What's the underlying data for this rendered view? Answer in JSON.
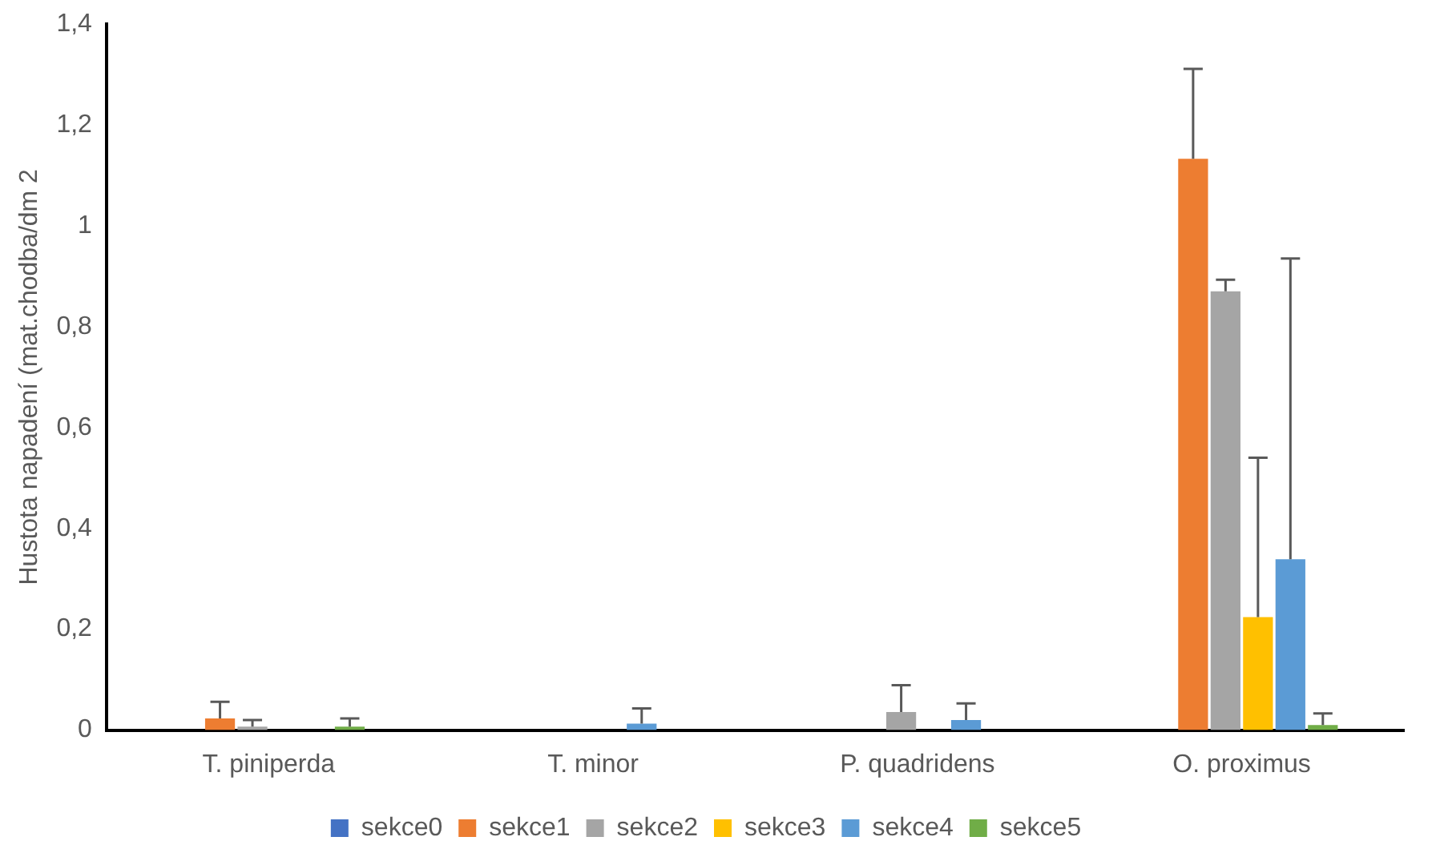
{
  "chart_data": {
    "type": "bar",
    "ylabel": "Hustota napadení (mat.chodba/dm 2",
    "categories": [
      "T. piniperda",
      "T. minor",
      "P. quadridens",
      "O. proximus"
    ],
    "series": [
      {
        "name": "sekce0",
        "color": "#4472c4",
        "values": [
          0,
          0,
          0,
          0
        ]
      },
      {
        "name": "sekce1",
        "color": "#ed7d31",
        "values": [
          0.023,
          0,
          0,
          1.133
        ],
        "errors": [
          [
            0.023,
            0.056
          ],
          null,
          null,
          [
            1.133,
            1.311
          ]
        ]
      },
      {
        "name": "sekce2",
        "color": "#a5a5a5",
        "values": [
          0.007,
          0,
          0.036,
          0.87
        ],
        "errors": [
          [
            0.007,
            0.02
          ],
          null,
          [
            0.036,
            0.089
          ],
          [
            0.87,
            0.893
          ]
        ]
      },
      {
        "name": "sekce3",
        "color": "#ffc000",
        "values": [
          0,
          0,
          0,
          0.224
        ],
        "errors": [
          null,
          null,
          null,
          [
            0.224,
            0.54
          ]
        ]
      },
      {
        "name": "sekce4",
        "color": "#5b9bd5",
        "values": [
          0,
          0.013,
          0.02,
          0.339
        ],
        "errors": [
          null,
          [
            0.013,
            0.043
          ],
          [
            0.02,
            0.053
          ],
          [
            0.339,
            0.935
          ]
        ]
      },
      {
        "name": "sekce5",
        "color": "#70ad47",
        "values": [
          0.007,
          0,
          0,
          0.01
        ],
        "errors": [
          [
            0.007,
            0.023
          ],
          null,
          null,
          [
            0.01,
            0.033
          ]
        ]
      }
    ],
    "ylim": [
      0,
      1.4
    ],
    "yticks": [
      0,
      {
        "value": 0.2,
        "label": "0,2"
      },
      {
        "value": 0.4,
        "label": "0,4"
      },
      {
        "value": 0.6,
        "label": "0,6"
      },
      {
        "value": 0.8,
        "label": "0,8"
      },
      1,
      {
        "value": 1.2,
        "label": "1,2"
      },
      {
        "value": 1.4,
        "label": "1,4"
      }
    ],
    "grid": false,
    "legend": "bottom"
  }
}
